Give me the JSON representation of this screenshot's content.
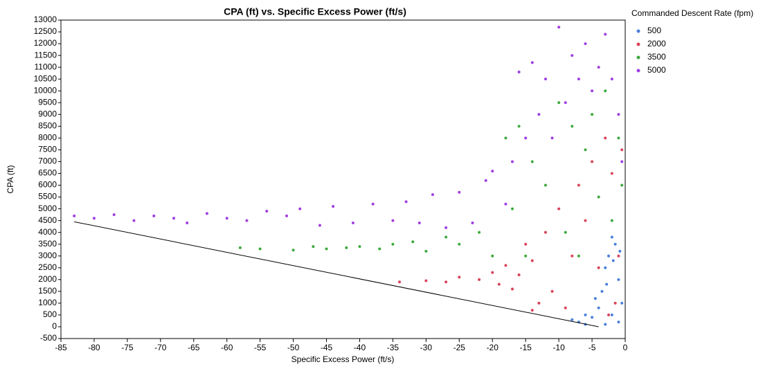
{
  "chart_data": {
    "type": "scatter",
    "title": "CPA (ft) vs. Specific Excess Power (ft/s)",
    "x_label": "Specific Excess Power (ft/s)",
    "y_label": "CPA (ft)",
    "legend_title": "Commanded Descent Rate (fpm)",
    "legend": "right",
    "xlim": [
      -85,
      0
    ],
    "xticks": [
      -85,
      -80,
      -75,
      -70,
      -65,
      -60,
      -55,
      -50,
      -45,
      -40,
      -35,
      -30,
      -25,
      -20,
      -15,
      -10,
      -5,
      0
    ],
    "ylim": [
      -500,
      13000
    ],
    "yticks": [
      -500,
      0,
      500,
      1000,
      1500,
      2000,
      2500,
      3000,
      3500,
      4000,
      4500,
      5000,
      5500,
      6000,
      6500,
      7000,
      7500,
      8000,
      8500,
      9000,
      9500,
      10000,
      10500,
      11000,
      11500,
      12000,
      12500,
      13000
    ],
    "reference_line": {
      "x": [
        -83,
        -4
      ],
      "y": [
        4450,
        0
      ],
      "color": "#000000"
    },
    "series": [
      {
        "name": "500",
        "color": "#4a7fdc",
        "x": [
          -8,
          -7,
          -6,
          -5,
          -4,
          -3.5,
          -3,
          -2.5,
          -2,
          -1.5,
          -1,
          -0.5,
          -3,
          -2,
          -1,
          -4.5,
          -6,
          -2.8,
          -1.8,
          -0.8
        ],
        "y": [
          300,
          200,
          500,
          400,
          800,
          1500,
          2500,
          3000,
          3800,
          3500,
          2000,
          1000,
          100,
          500,
          200,
          1200,
          100,
          1800,
          2800,
          3200
        ]
      },
      {
        "name": "2000",
        "color": "#d9435a",
        "x": [
          -34,
          -30,
          -27,
          -25,
          -22,
          -20,
          -19,
          -18,
          -17,
          -16,
          -15,
          -14,
          -13,
          -12,
          -11,
          -10,
          -9,
          -8,
          -7,
          -6,
          -5,
          -4,
          -3,
          -2,
          -1,
          -0.5,
          -2.5,
          -14,
          -1.5
        ],
        "y": [
          1900,
          1950,
          1900,
          2100,
          2000,
          2300,
          1800,
          2600,
          1600,
          2200,
          3500,
          2800,
          1000,
          4000,
          1500,
          5000,
          800,
          3000,
          6000,
          4500,
          7000,
          2500,
          8000,
          6500,
          3000,
          7500,
          500,
          700,
          1000
        ]
      },
      {
        "name": "3500",
        "color": "#3caa3c",
        "x": [
          -58,
          -55,
          -50,
          -47,
          -45,
          -42,
          -40,
          -37,
          -35,
          -32,
          -30,
          -27,
          -25,
          -22,
          -20,
          -18,
          -17,
          -16,
          -15,
          -14,
          -12,
          -10,
          -9,
          -8,
          -7,
          -6,
          -5,
          -4,
          -3,
          -2,
          -1,
          -0.5
        ],
        "y": [
          3350,
          3300,
          3250,
          3400,
          3300,
          3350,
          3400,
          3300,
          3500,
          3600,
          3200,
          3800,
          3500,
          4000,
          3000,
          8000,
          5000,
          8500,
          3000,
          7000,
          6000,
          9500,
          4000,
          8500,
          3000,
          7500,
          9000,
          5500,
          10000,
          4500,
          8000,
          6000
        ]
      },
      {
        "name": "5000",
        "color": "#a03ee0",
        "x": [
          -83,
          -80,
          -77,
          -74,
          -71,
          -68,
          -66,
          -63,
          -60,
          -57,
          -54,
          -51,
          -49,
          -46,
          -44,
          -41,
          -38,
          -35,
          -33,
          -31,
          -29,
          -27,
          -25,
          -23,
          -21,
          -20,
          -18,
          -17,
          -16,
          -15,
          -14,
          -13,
          -12,
          -11,
          -10,
          -9,
          -8,
          -7,
          -6,
          -5,
          -4,
          -3,
          -2,
          -1,
          -0.5
        ],
        "y": [
          4700,
          4600,
          4750,
          4500,
          4700,
          4600,
          4400,
          4800,
          4600,
          4500,
          4900,
          4700,
          5000,
          4300,
          5100,
          4400,
          5200,
          4500,
          5300,
          4400,
          5600,
          4200,
          5700,
          4400,
          6200,
          6600,
          5200,
          7000,
          10800,
          8000,
          11200,
          9000,
          10500,
          8000,
          12700,
          9500,
          11500,
          10500,
          12000,
          10000,
          11000,
          12400,
          10500,
          9000,
          7000
        ]
      }
    ]
  }
}
